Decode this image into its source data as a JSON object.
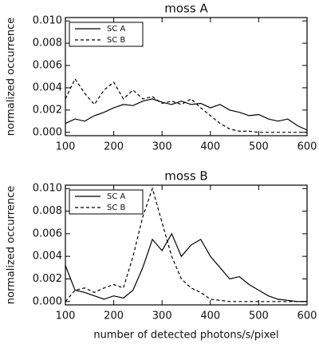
{
  "chart_data": [
    {
      "type": "line",
      "title": "moss A",
      "y_label": "normalized occurrence",
      "x": [
        100,
        120,
        140,
        160,
        180,
        200,
        220,
        240,
        260,
        280,
        300,
        320,
        340,
        360,
        380,
        400,
        420,
        440,
        460,
        480,
        500,
        520,
        540,
        560,
        580,
        600
      ],
      "series": [
        {
          "name": "SC A",
          "color": "#000000",
          "line_style": "solid",
          "values": [
            0.0008,
            0.0012,
            0.001,
            0.0015,
            0.0018,
            0.0022,
            0.0025,
            0.0024,
            0.0028,
            0.003,
            0.0027,
            0.0025,
            0.0028,
            0.0025,
            0.0026,
            0.0022,
            0.0025,
            0.002,
            0.0018,
            0.0015,
            0.0016,
            0.0012,
            0.001,
            0.0012,
            0.0006,
            0.0002
          ]
        },
        {
          "name": "SC B",
          "color": "#000000",
          "line_style": "dashed",
          "values": [
            0.003,
            0.0048,
            0.0035,
            0.0025,
            0.0038,
            0.0045,
            0.003,
            0.0038,
            0.003,
            0.0032,
            0.0026,
            0.0028,
            0.0025,
            0.003,
            0.0022,
            0.0015,
            0.0008,
            0.0003,
            0.0001,
            0.0001,
            0.0,
            0.0,
            0.0,
            0.0,
            0.0,
            0.0
          ]
        }
      ],
      "xlim": [
        100,
        600
      ],
      "xticks": [
        100,
        200,
        300,
        400,
        500,
        600
      ],
      "ylim": [
        -0.0003,
        0.0103
      ],
      "yticks": [
        {
          "value": 0,
          "label": "0.000"
        },
        0.002,
        0.004,
        0.006,
        0.008,
        {
          "value": 0.01,
          "label": "0.010"
        }
      ],
      "legend": "upper left"
    },
    {
      "type": "line",
      "title": "moss B",
      "y_label": "normalized occurrence",
      "x_label": "number of detected photons/s/pixel",
      "x": [
        100,
        120,
        140,
        160,
        180,
        200,
        220,
        240,
        260,
        280,
        300,
        320,
        340,
        360,
        380,
        400,
        420,
        440,
        460,
        480,
        500,
        520,
        540,
        560,
        580,
        600
      ],
      "series": [
        {
          "name": "SC A",
          "color": "#000000",
          "line_style": "solid",
          "values": [
            0.0032,
            0.001,
            0.0008,
            0.0005,
            0.0002,
            0.0005,
            0.0003,
            0.001,
            0.003,
            0.0055,
            0.0045,
            0.006,
            0.004,
            0.005,
            0.0055,
            0.004,
            0.003,
            0.002,
            0.0022,
            0.0015,
            0.001,
            0.0005,
            0.0002,
            0.0001,
            0.0,
            0.0
          ]
        },
        {
          "name": "SC B",
          "color": "#000000",
          "line_style": "dashed",
          "values": [
            0.0,
            0.001,
            0.0012,
            0.0008,
            0.0012,
            0.0015,
            0.0012,
            0.004,
            0.0075,
            0.01,
            0.007,
            0.004,
            0.002,
            0.0012,
            0.0008,
            0.0002,
            0.0001,
            0.0,
            0.0,
            0.0,
            0.0,
            0.0,
            0.0,
            0.0,
            0.0,
            0.0
          ]
        }
      ],
      "xlim": [
        100,
        600
      ],
      "xticks": [
        100,
        200,
        300,
        400,
        500,
        600
      ],
      "ylim": [
        -0.0003,
        0.0103
      ],
      "yticks": [
        {
          "value": 0,
          "label": "0.000"
        },
        0.002,
        0.004,
        0.006,
        0.008,
        {
          "value": 0.01,
          "label": "0.010"
        }
      ],
      "legend": "upper left"
    }
  ]
}
